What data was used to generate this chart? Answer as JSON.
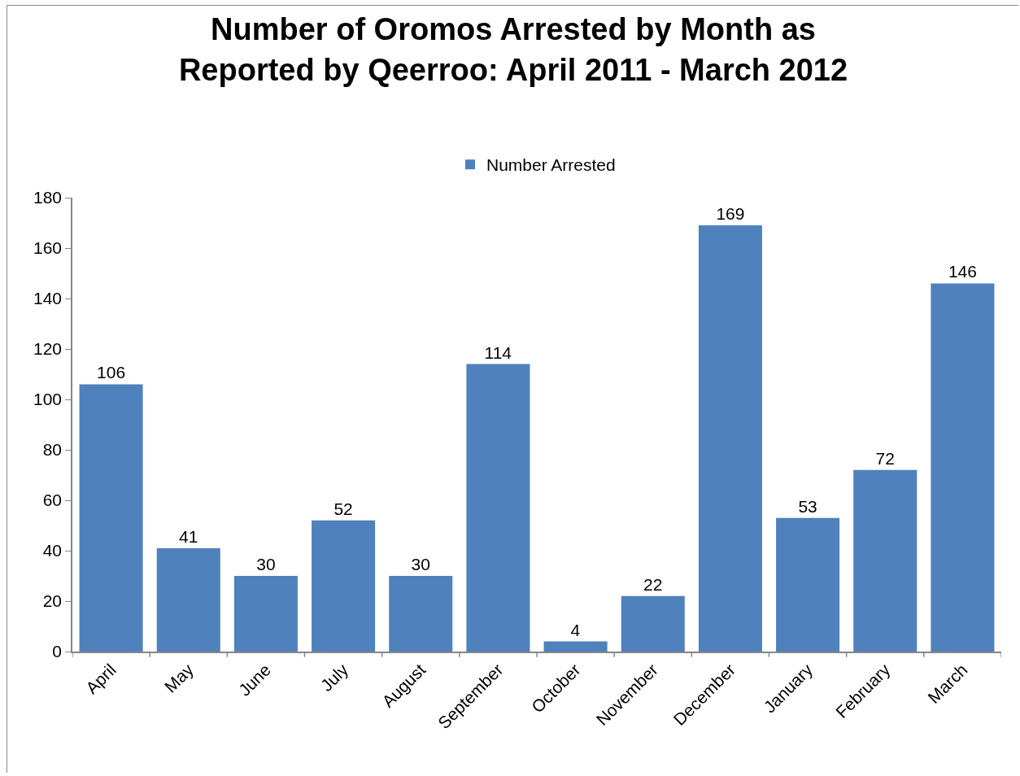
{
  "chart_data": {
    "type": "bar",
    "title": "Number of Oromos Arrested by Month as\nReported by Qeerroo: April 2011 - March 2012",
    "categories": [
      "April",
      "May",
      "June",
      "July",
      "August",
      "September",
      "October",
      "November",
      "December",
      "January",
      "February",
      "March"
    ],
    "series": [
      {
        "name": "Number Arrested",
        "color": "#4f81bd",
        "values": [
          106,
          41,
          30,
          52,
          30,
          114,
          4,
          22,
          169,
          53,
          72,
          146
        ]
      }
    ],
    "ylim": [
      0,
      180
    ],
    "yticks": [
      0,
      20,
      40,
      60,
      80,
      100,
      120,
      140,
      160,
      180
    ],
    "grid": false,
    "legend": "top",
    "data_labels": true
  }
}
